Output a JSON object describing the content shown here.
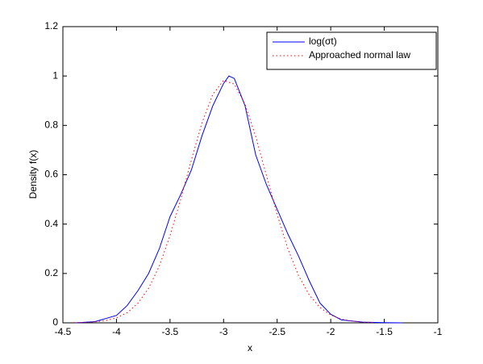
{
  "chart_data": {
    "type": "line",
    "xlabel": "x",
    "ylabel": "Density f(x)",
    "xlim": [
      -4.5,
      -1
    ],
    "xticks": [
      -4.5,
      -4,
      -3.5,
      -3,
      -2.5,
      -2,
      -1.5,
      -1
    ],
    "ylim": [
      0,
      1.2
    ],
    "yticks": [
      0,
      0.2,
      0.4,
      0.6,
      0.8,
      1,
      1.2
    ],
    "grid": false,
    "legend": "upper right",
    "series": [
      {
        "name": "log(σt)",
        "color": "#0000ff",
        "linestyle": "solid",
        "x": [
          -4.38,
          -4.2,
          -4.0,
          -3.9,
          -3.8,
          -3.7,
          -3.6,
          -3.5,
          -3.4,
          -3.3,
          -3.2,
          -3.1,
          -3.0,
          -2.95,
          -2.9,
          -2.8,
          -2.7,
          -2.6,
          -2.5,
          -2.4,
          -2.3,
          -2.2,
          -2.1,
          -2.0,
          -1.9,
          -1.7,
          -1.5,
          -1.33
        ],
        "values": [
          0,
          0.005,
          0.03,
          0.07,
          0.13,
          0.2,
          0.3,
          0.43,
          0.52,
          0.62,
          0.76,
          0.88,
          0.97,
          1.0,
          0.99,
          0.88,
          0.68,
          0.56,
          0.46,
          0.36,
          0.27,
          0.17,
          0.08,
          0.035,
          0.012,
          0.003,
          0.001,
          0
        ]
      },
      {
        "name": "Approached normal law",
        "color": "#ff0000",
        "linestyle": "dotted",
        "x": [
          -4.4,
          -4.3,
          -4.2,
          -4.1,
          -4.0,
          -3.9,
          -3.8,
          -3.7,
          -3.6,
          -3.5,
          -3.4,
          -3.3,
          -3.2,
          -3.1,
          -3.0,
          -2.9,
          -2.8,
          -2.7,
          -2.6,
          -2.5,
          -2.4,
          -2.3,
          -2.2,
          -2.1,
          -2.0,
          -1.9,
          -1.8,
          -1.7,
          -1.6
        ],
        "values": [
          0.001,
          0.002,
          0.004,
          0.009,
          0.02,
          0.041,
          0.079,
          0.14,
          0.23,
          0.353,
          0.501,
          0.661,
          0.812,
          0.926,
          0.982,
          0.967,
          0.886,
          0.755,
          0.597,
          0.439,
          0.3,
          0.191,
          0.113,
          0.062,
          0.032,
          0.015,
          0.007,
          0.003,
          0.001
        ]
      }
    ]
  }
}
